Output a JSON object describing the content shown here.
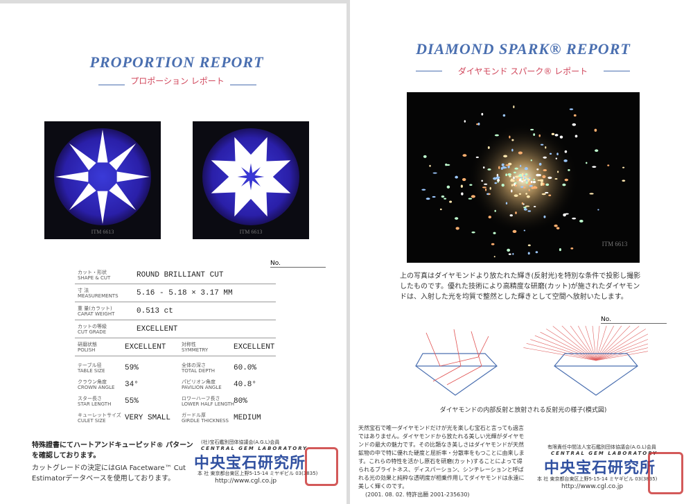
{
  "left_page": {
    "title": "PROPORTION REPORT",
    "subtitle": "プロポーション レポート",
    "image_labels": [
      "ITM 6613",
      "ITM 6613"
    ],
    "number_label": "No.",
    "details": [
      {
        "label_ja": "カット・形状",
        "label_en": "SHAPE & CUT",
        "value": "ROUND BRILLIANT CUT"
      },
      {
        "label_ja": "寸 法",
        "label_en": "MEASUREMENTS",
        "value": "5.16 - 5.18 × 3.17 MM"
      },
      {
        "label_ja": "重 量(カラット)",
        "label_en": "CARAT WEIGHT",
        "value": "0.513 ct"
      },
      {
        "label_ja": "カットの等級",
        "label_en": "CUT GRADE",
        "value": "EXCELLENT"
      }
    ],
    "pairs": [
      [
        {
          "label_ja": "研磨状態",
          "label_en": "POLISH",
          "value": "EXCELLENT"
        },
        {
          "label_ja": "対称性",
          "label_en": "SYMMETRY",
          "value": "EXCELLENT"
        }
      ],
      [
        {
          "label_ja": "テーブル径",
          "label_en": "TABLE SIZE",
          "value": "59%"
        },
        {
          "label_ja": "全体の深さ",
          "label_en": "TOTAL DEPTH",
          "value": "60.0%"
        }
      ],
      [
        {
          "label_ja": "クラウン角度",
          "label_en": "CROWN ANGLE",
          "value": "34°"
        },
        {
          "label_ja": "パビリオン角度",
          "label_en": "PAVILION ANGLE",
          "value": "40.8°"
        }
      ],
      [
        {
          "label_ja": "スター長さ",
          "label_en": "STAR LENGTH",
          "value": "55%"
        },
        {
          "label_ja": "ロワーハーフ長さ",
          "label_en": "LOWER HALF LENGTH",
          "value": "80%"
        }
      ],
      [
        {
          "label_ja": "キューレットサイズ",
          "label_en": "CULET SIZE",
          "value": "VERY SMALL"
        },
        {
          "label_ja": "ガードル厚",
          "label_en": "GIRDLE THICKNESS",
          "value": "MEDIUM"
        }
      ]
    ],
    "notes": [
      "特殊證書にてハートアンドキューピッド® パターンを確認しております。",
      "カットグレードの決定にはGIA Facetware™ Cut Estimatorデータベースを使用しております。"
    ],
    "footer": {
      "member": "(社)宝石鑑別団体協議会(A.G.L)会員",
      "name_en": "CENTRAL GEM LABORATORY",
      "name": "中央宝石研究所",
      "address": "本 社 東京都台東区上野5-15-14 ミヤギビル 03(3835)",
      "url": "http://www.cgl.co.jp"
    }
  },
  "right_page": {
    "title": "DIAMOND SPARK® REPORT",
    "subtitle": "ダイヤモンド スパーク® レポート",
    "image_label": "ITM 6613",
    "description": "上の写真はダイヤモンドより放たれた輝き(反射光)を特別な条件で投影し撮影したものです。優れた技術により高精度な研磨(カット)が施されたダイヤモンドは、入射した光を均質で整然とした輝きとして空間へ放射いたします。",
    "number_label": "No.",
    "diagram_caption": "ダイヤモンドの内部反射と放射される反射光の様子(模式図)",
    "body": "天然宝石で唯一ダイヤモンドだけが光を楽しむ宝石と言っても過言ではありません。ダイヤモンドから放たれる美しい光輝がダイヤモンドの最大の魅力です。その比類なき美しさはダイヤモンドが天然鉱物の中で特に優れた硬度と屈折率・分散率をもつことに由来します。これらの特性を活かし原石を研磨(カット)することによって得られるブライトネス、ディスパーション、シンチレーションと呼ばれる光の効果と純粋な透明度が相乗作用してダイヤモンドは永遠に美しく輝くのです。",
    "patent": "(2001. 08. 02. 特許出願 2001-235630)",
    "footer": {
      "member": "有限責任中間法人宝石鑑別団体協議会(A.G.L)会員",
      "name_en": "CENTRAL GEM LABORATORY",
      "name": "中央宝石研究所",
      "address": "本 社 東京都台東区上野5-15-14 ミヤギビル 03(3835)",
      "url": "http://www.cgl.co.jp"
    }
  }
}
